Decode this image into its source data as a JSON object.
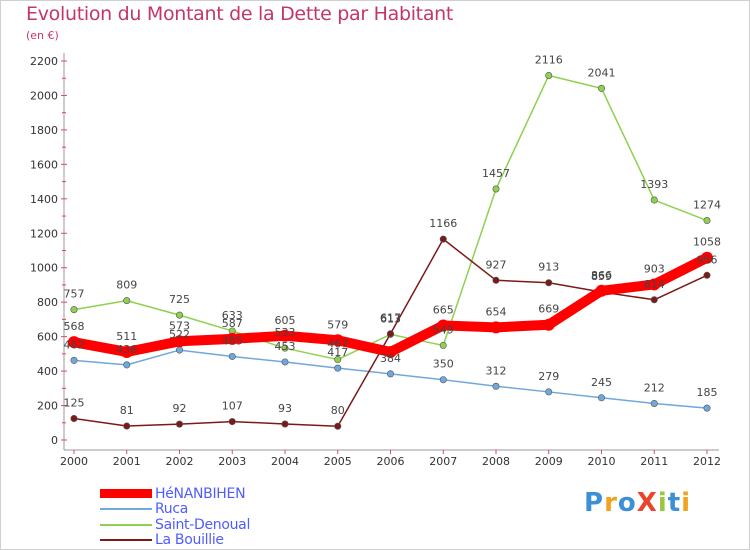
{
  "title": "Evolution du Montant de la Dette par Habitant",
  "subtitle": "(en €)",
  "logo": {
    "text": "ProXiti",
    "colors": [
      "#3d8fd6",
      "#f2a21c",
      "#3d8fd6",
      "#e8452c",
      "#9bc53d",
      "#3d8fd6",
      "#f2a21c"
    ]
  },
  "chart_data": {
    "type": "line",
    "x": [
      "2000",
      "2001",
      "2002",
      "2003",
      "2004",
      "2005",
      "2006",
      "2007",
      "2008",
      "2009",
      "2010",
      "2011",
      "2012"
    ],
    "ylim": [
      0,
      2200
    ],
    "yticks": [
      0,
      200,
      400,
      600,
      800,
      1000,
      1200,
      1400,
      1600,
      1800,
      2000,
      2200
    ],
    "grid": false,
    "legend_position": "bottom-left",
    "series": [
      {
        "name": "HéNANBIHEN",
        "color": "#ff0000",
        "values": [
          568,
          511,
          573,
          587,
          605,
          579,
          511,
          665,
          654,
          669,
          866,
          903,
          1058
        ],
        "labels": [
          "568",
          "511",
          "573",
          "587",
          "605",
          "579",
          "",
          "665",
          "654",
          "669",
          "866",
          "903",
          "1058"
        ]
      },
      {
        "name": "Ruca",
        "color": "#6fa8dc",
        "values": [
          462,
          436,
          522,
          485,
          453,
          417,
          384,
          350,
          312,
          279,
          245,
          212,
          185
        ],
        "labels": [
          "462",
          "436",
          "522",
          "485",
          "453",
          "417",
          "384",
          "350",
          "312",
          "279",
          "245",
          "212",
          "185"
        ]
      },
      {
        "name": "Saint-Denoual",
        "color": "#8fd14f",
        "values": [
          757,
          809,
          725,
          633,
          533,
          467,
          613,
          549,
          1457,
          2116,
          2041,
          1393,
          1274
        ],
        "labels": [
          "757",
          "809",
          "725",
          "633",
          "533",
          "467",
          "613",
          "549",
          "1457",
          "2116",
          "2041",
          "1393",
          "1274"
        ]
      },
      {
        "name": "La Bouillie",
        "color": "#7b1a1a",
        "values": [
          125,
          81,
          92,
          107,
          93,
          80,
          617,
          1166,
          927,
          913,
          859,
          814,
          956
        ],
        "labels": [
          "125",
          "81",
          "92",
          "107",
          "93",
          "80",
          "617",
          "1166",
          "927",
          "913",
          "859",
          "814",
          "956"
        ]
      }
    ]
  }
}
